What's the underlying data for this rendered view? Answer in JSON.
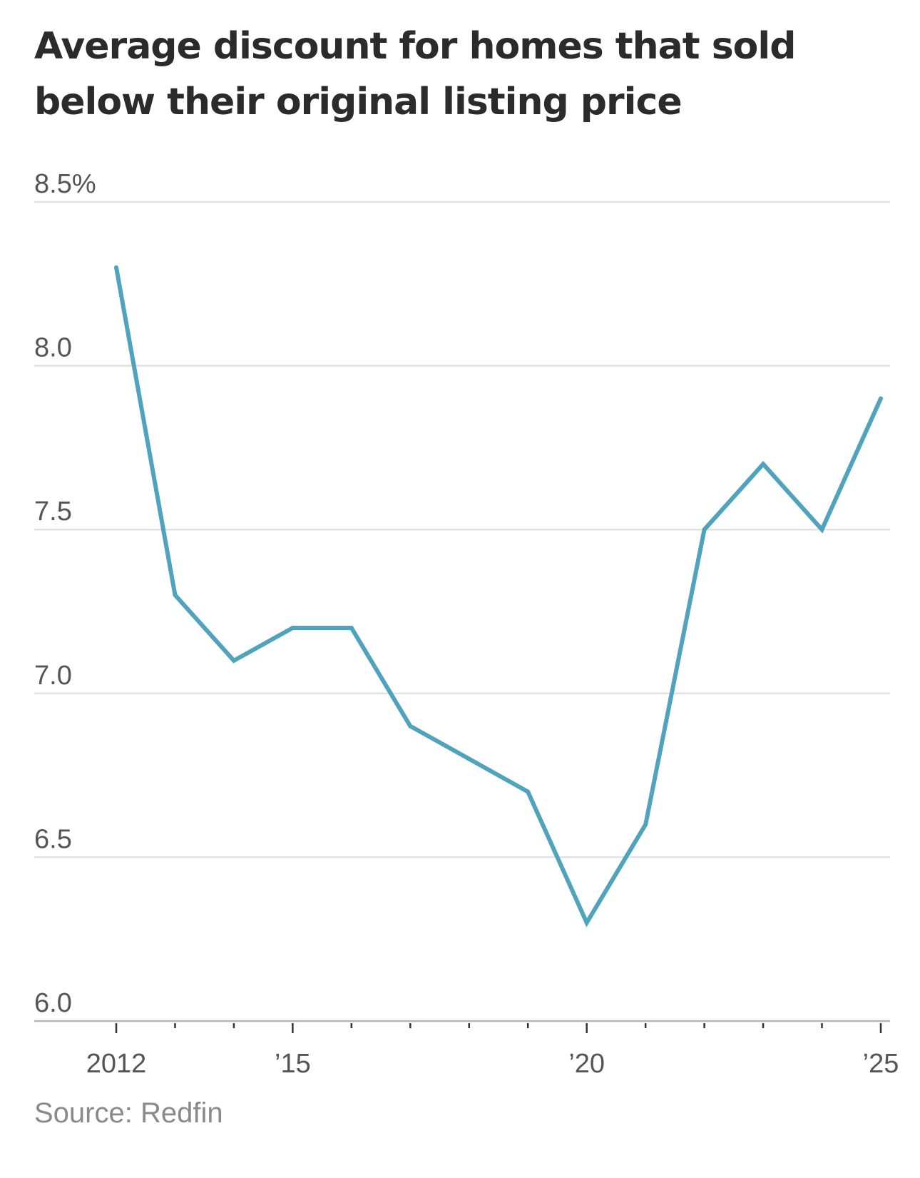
{
  "chart_data": {
    "type": "line",
    "title": "Average discount for homes that sold below their original listing price",
    "source": "Source: Redfin",
    "xlabel": "",
    "ylabel": "",
    "x": [
      2012,
      2013,
      2014,
      2015,
      2016,
      2017,
      2018,
      2019,
      2020,
      2021,
      2022,
      2023,
      2024,
      2025
    ],
    "series": [
      {
        "name": "Average discount",
        "values": [
          8.3,
          7.3,
          7.1,
          7.2,
          7.2,
          6.9,
          6.8,
          6.7,
          6.3,
          6.6,
          7.5,
          7.7,
          7.5,
          7.9
        ]
      }
    ],
    "xlim": [
      2012,
      2025
    ],
    "ylim": [
      6.0,
      8.5
    ],
    "y_ticks": [
      {
        "value": 8.5,
        "label": "8.5%"
      },
      {
        "value": 8.0,
        "label": "8.0"
      },
      {
        "value": 7.5,
        "label": "7.5"
      },
      {
        "value": 7.0,
        "label": "7.0"
      },
      {
        "value": 6.5,
        "label": "6.5"
      },
      {
        "value": 6.0,
        "label": "6.0"
      }
    ],
    "x_ticks": [
      {
        "value": 2012,
        "label": "2012"
      },
      {
        "value": 2015,
        "label": "’15"
      },
      {
        "value": 2020,
        "label": "’20"
      },
      {
        "value": 2025,
        "label": "’25"
      }
    ],
    "grid": true,
    "colors": {
      "line": "#4fa3bd",
      "grid": "#e2e2e2",
      "axis": "#b5b5b5",
      "tick": "#333333"
    }
  }
}
